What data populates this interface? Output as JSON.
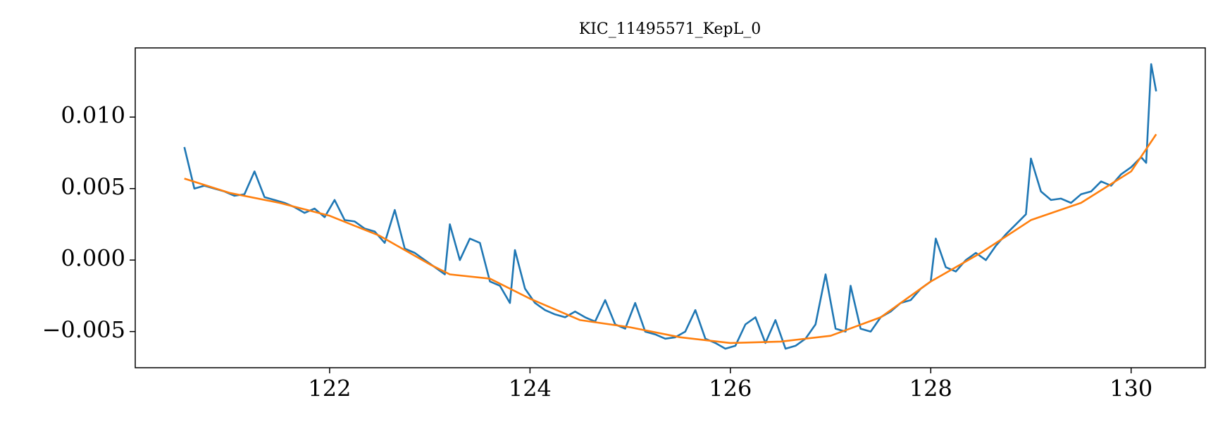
{
  "chart_data": {
    "type": "line",
    "title": "KIC_11495571_KepL_0",
    "xlim": [
      120.06,
      130.74
    ],
    "xticks": [
      122,
      124,
      126,
      128,
      130
    ],
    "ylim": [
      -0.00753,
      0.01484
    ],
    "yticks": [
      {
        "value": -0.005,
        "label": "−0.005"
      },
      {
        "value": 0,
        "label": "0.000"
      },
      0.005,
      {
        "value": 0.01,
        "label": "0.010"
      }
    ],
    "grid": false,
    "series": [
      {
        "color": "#1f77b4",
        "x": [
          120.55,
          120.65,
          120.75,
          120.85,
          120.95,
          121.05,
          121.15,
          121.25,
          121.35,
          121.45,
          121.55,
          121.65,
          121.75,
          121.85,
          121.95,
          122.05,
          122.15,
          122.25,
          122.35,
          122.45,
          122.55,
          122.65,
          122.75,
          122.85,
          122.95,
          123.05,
          123.15,
          123.2,
          123.3,
          123.4,
          123.5,
          123.6,
          123.7,
          123.8,
          123.85,
          123.95,
          124.05,
          124.15,
          124.25,
          124.35,
          124.45,
          124.55,
          124.65,
          124.75,
          124.85,
          124.95,
          125.05,
          125.15,
          125.25,
          125.35,
          125.45,
          125.55,
          125.65,
          125.75,
          125.85,
          125.95,
          126.05,
          126.15,
          126.25,
          126.35,
          126.45,
          126.55,
          126.65,
          126.75,
          126.85,
          126.95,
          127.05,
          127.15,
          127.2,
          127.3,
          127.4,
          127.5,
          127.6,
          127.7,
          127.8,
          127.9,
          128.0,
          128.05,
          128.15,
          128.25,
          128.35,
          128.45,
          128.55,
          128.65,
          128.75,
          128.85,
          128.95,
          129.0,
          129.1,
          129.2,
          129.3,
          129.4,
          129.5,
          129.6,
          129.7,
          129.8,
          129.9,
          130.0,
          130.1,
          130.15,
          130.2,
          130.25
        ],
        "values": [
          0.0079,
          0.005,
          0.0052,
          0.005,
          0.0048,
          0.0045,
          0.0046,
          0.0062,
          0.0044,
          0.0042,
          0.004,
          0.0037,
          0.0033,
          0.0036,
          0.003,
          0.0042,
          0.0028,
          0.0027,
          0.0022,
          0.002,
          0.0012,
          0.0035,
          0.0008,
          0.0005,
          0.0,
          -0.0005,
          -0.001,
          0.0025,
          0.0,
          0.0015,
          0.0012,
          -0.0015,
          -0.0018,
          -0.003,
          0.0007,
          -0.002,
          -0.003,
          -0.0035,
          -0.0038,
          -0.004,
          -0.0036,
          -0.004,
          -0.0043,
          -0.0028,
          -0.0045,
          -0.0048,
          -0.003,
          -0.005,
          -0.0052,
          -0.0055,
          -0.0054,
          -0.005,
          -0.0035,
          -0.0055,
          -0.0058,
          -0.0062,
          -0.006,
          -0.0045,
          -0.004,
          -0.0058,
          -0.0042,
          -0.0062,
          -0.006,
          -0.0055,
          -0.0045,
          -0.001,
          -0.0048,
          -0.005,
          -0.0018,
          -0.0048,
          -0.005,
          -0.004,
          -0.0036,
          -0.003,
          -0.0028,
          -0.002,
          -0.0015,
          0.0015,
          -0.0005,
          -0.0008,
          0.0,
          0.0005,
          0.0,
          0.001,
          0.0018,
          0.0025,
          0.0032,
          0.0071,
          0.0048,
          0.0042,
          0.0043,
          0.004,
          0.0046,
          0.0048,
          0.0055,
          0.0052,
          0.006,
          0.0065,
          0.0072,
          0.0068,
          0.0137,
          0.0118
        ]
      },
      {
        "color": "#ff7f0e",
        "x": [
          120.55,
          121,
          121.5,
          122,
          122.5,
          123,
          123.2,
          123.6,
          124,
          124.5,
          125,
          125.5,
          126,
          126.5,
          127,
          127.5,
          128,
          128.5,
          129,
          129.5,
          130,
          130.25
        ],
        "values": [
          0.0057,
          0.0047,
          0.004,
          0.0031,
          0.0017,
          -0.0003,
          -0.001,
          -0.0013,
          -0.0027,
          -0.0042,
          -0.0047,
          -0.0054,
          -0.0058,
          -0.0057,
          -0.0053,
          -0.004,
          -0.0015,
          0.0005,
          0.0028,
          0.004,
          0.0062,
          0.0088
        ]
      }
    ]
  }
}
